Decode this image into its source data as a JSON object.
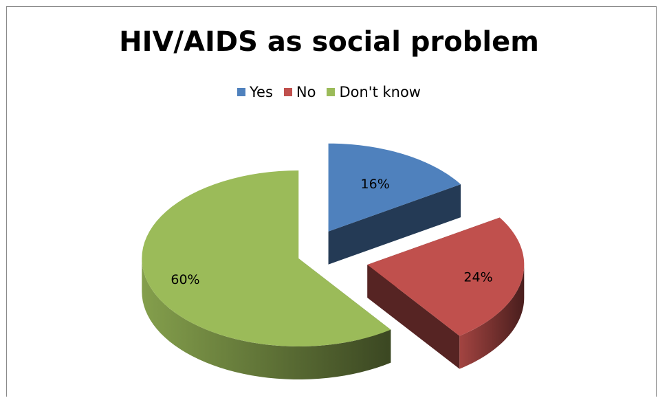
{
  "chart_data": {
    "type": "pie",
    "title": "HIV/AIDS as social problem",
    "categories": [
      "Yes",
      "No",
      "Don't know"
    ],
    "values": [
      16,
      24,
      60
    ],
    "labels": [
      "16%",
      "24%",
      "60%"
    ],
    "colors": [
      "#4F81BD",
      "#C0504D",
      "#9BBB59"
    ],
    "legend_position": "top",
    "style": "3D exploded pie"
  }
}
